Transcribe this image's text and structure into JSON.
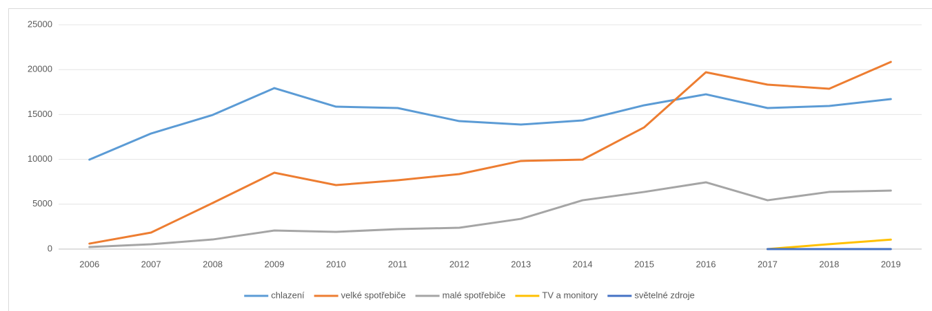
{
  "chart_data": {
    "type": "line",
    "categories": [
      "2006",
      "2007",
      "2008",
      "2009",
      "2010",
      "2011",
      "2012",
      "2013",
      "2014",
      "2015",
      "2016",
      "2017",
      "2018",
      "2019"
    ],
    "series": [
      {
        "name": "chlazení",
        "color": "#5b9bd5",
        "values": [
          9970,
          12880,
          14950,
          17940,
          15870,
          15720,
          14260,
          13880,
          14340,
          16030,
          17250,
          15720,
          15950,
          16720
        ]
      },
      {
        "name": "velké spotřebiče",
        "color": "#ed7d31",
        "values": [
          610,
          1840,
          5140,
          8510,
          7130,
          7670,
          8360,
          9820,
          9970,
          13570,
          19710,
          18330,
          17870,
          20860
        ]
      },
      {
        "name": "malé spotřebiče",
        "color": "#a5a5a5",
        "values": [
          230,
          540,
          1070,
          2070,
          1920,
          2220,
          2380,
          3370,
          5440,
          6370,
          7440,
          5440,
          6370,
          6520
        ]
      },
      {
        "name": "TV a monitory",
        "color": "#ffc000",
        "values": [
          null,
          null,
          null,
          null,
          null,
          null,
          null,
          null,
          null,
          null,
          null,
          0,
          550,
          1050
        ]
      },
      {
        "name": "světelné zdroje",
        "color": "#4472c4",
        "values": [
          null,
          null,
          null,
          null,
          null,
          null,
          null,
          null,
          null,
          null,
          null,
          0,
          0,
          0
        ]
      }
    ],
    "ylim": [
      0,
      25000
    ],
    "yticks": [
      0,
      5000,
      10000,
      15000,
      20000,
      25000
    ],
    "grid": true,
    "legend": "bottom"
  }
}
